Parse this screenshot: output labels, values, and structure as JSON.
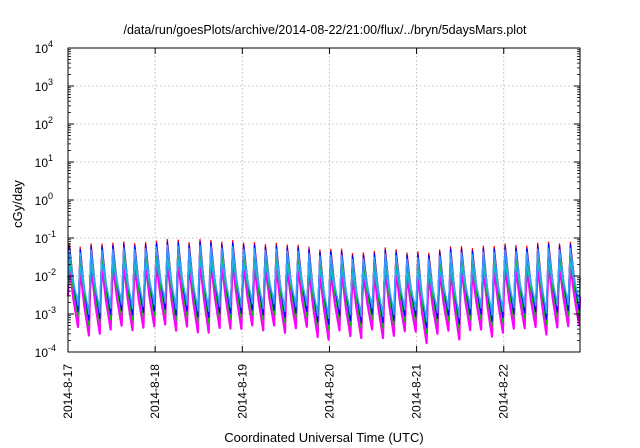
{
  "chart_data": {
    "type": "line",
    "title": "/data/run/goesPlots/archive/2014-08-22/21:00/flux/../bryn/5daysMars.plot",
    "xlabel": "Coordinated Universal Time (UTC)",
    "ylabel": "cGy/day",
    "y_scale": "log",
    "ylim": [
      0.0001,
      10000
    ],
    "xlim": [
      "2014-08-17 00:00",
      "2014-08-22 21:00"
    ],
    "x_ticks": [
      "2014-8-17",
      "2014-8-18",
      "2014-8-19",
      "2014-8-20",
      "2014-8-21",
      "2014-8-22"
    ],
    "y_ticks": [
      {
        "base": "10",
        "exp": "-4"
      },
      {
        "base": "10",
        "exp": "-3"
      },
      {
        "base": "10",
        "exp": "-2"
      },
      {
        "base": "10",
        "exp": "-1"
      },
      {
        "base": "10",
        "exp": "0"
      },
      {
        "base": "10",
        "exp": "1"
      },
      {
        "base": "10",
        "exp": "2"
      },
      {
        "base": "10",
        "exp": "3"
      },
      {
        "base": "10",
        "exp": "4"
      }
    ],
    "grid": true,
    "pattern": {
      "period_hours": 3,
      "peak_range": [
        0.03,
        0.08
      ],
      "trough_range": [
        0.0003,
        0.001
      ]
    },
    "series": [
      {
        "color": "#ff0000",
        "peak_factor": 1.15,
        "trough_factor": 1.3
      },
      {
        "color": "#ff00ff",
        "peak_factor": 0.3,
        "trough_factor": 0.55
      },
      {
        "color": "#00c000",
        "peak_factor": 0.55,
        "trough_factor": 1.0
      },
      {
        "color": "#0000ff",
        "peak_factor": 1.0,
        "trough_factor": 1.4
      },
      {
        "color": "#00c8c8",
        "peak_factor": 0.35,
        "trough_factor": 2.6
      },
      {
        "color": "#3aa0ff",
        "peak_factor": 0.8,
        "trough_factor": 2.0
      }
    ]
  }
}
